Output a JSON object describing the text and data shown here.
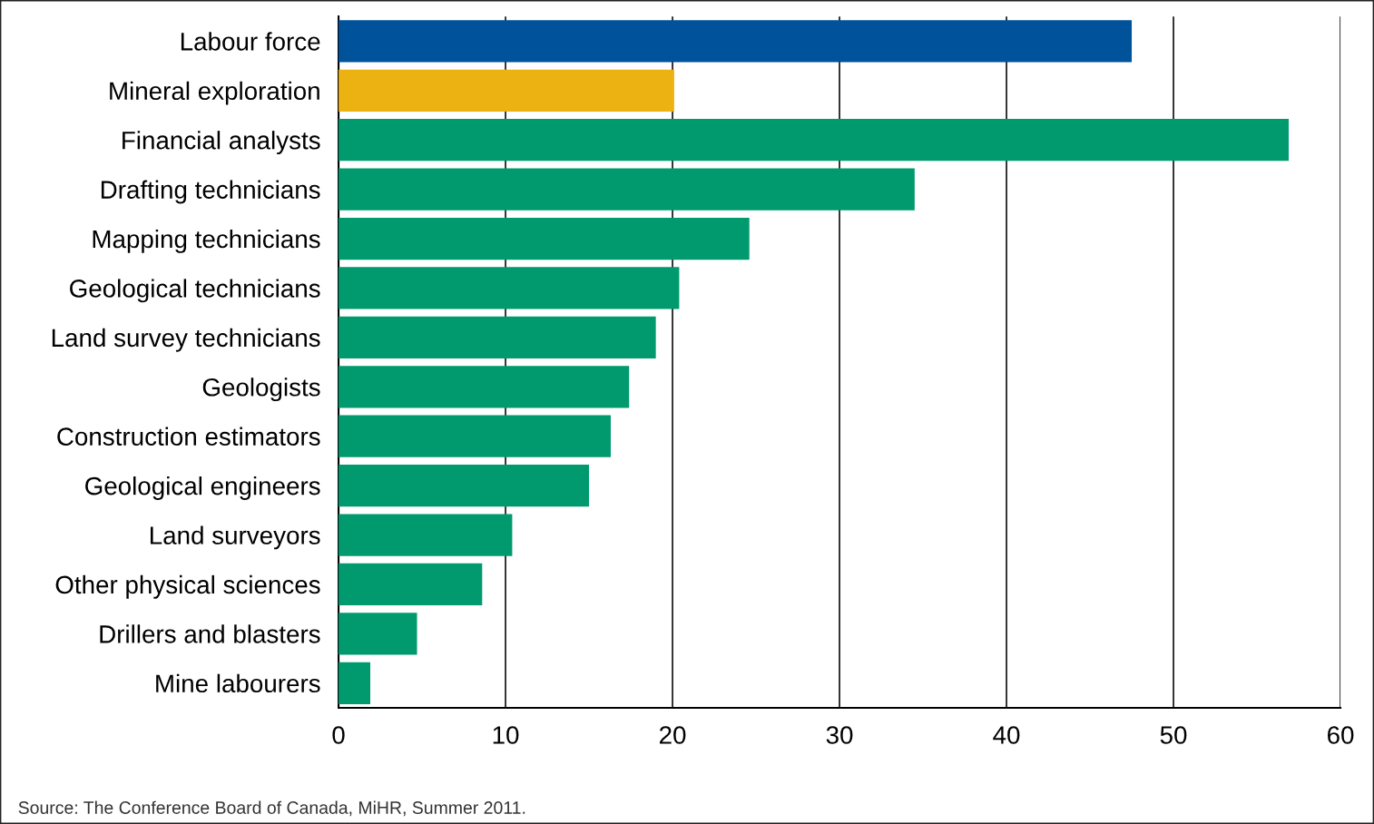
{
  "chart_data": {
    "type": "bar",
    "orientation": "horizontal",
    "categories": [
      "Labour force",
      "Mineral exploration",
      "Financial analysts",
      "Drafting technicians",
      "Mapping technicians",
      "Geological technicians",
      "Land survey technicians",
      "Geologists",
      "Construction estimators",
      "Geological engineers",
      "Land surveyors",
      "Other physical sciences",
      "Drillers and blasters",
      "Mine labourers"
    ],
    "values": [
      47.5,
      20.1,
      56.9,
      34.5,
      24.6,
      20.4,
      19.0,
      17.4,
      16.3,
      15.0,
      10.4,
      8.6,
      4.7,
      1.9
    ],
    "colors": [
      "#00529b",
      "#ecb212",
      "#009a6e",
      "#009a6e",
      "#009a6e",
      "#009a6e",
      "#009a6e",
      "#009a6e",
      "#009a6e",
      "#009a6e",
      "#009a6e",
      "#009a6e",
      "#009a6e",
      "#009a6e"
    ],
    "xlim": [
      0,
      60
    ],
    "xticks": [
      0,
      10,
      20,
      30,
      40,
      50,
      60
    ],
    "grid": "x",
    "legend": false,
    "annotations": [
      "Source: The Conference Board of Canada, MiHR, Summer 2011."
    ]
  }
}
